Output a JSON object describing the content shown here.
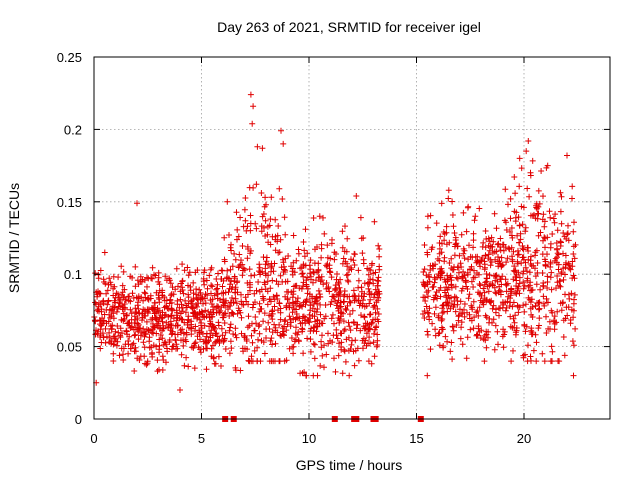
{
  "chart_data": {
    "type": "scatter",
    "title": "Day 263 of 2021, SRMTID for receiver igel",
    "xlabel": "GPS time / hours",
    "ylabel": "SRMTID / TECUs",
    "xlim": [
      0,
      24
    ],
    "ylim": [
      0,
      0.25
    ],
    "xticks": [
      0,
      5,
      10,
      15,
      20
    ],
    "yticks": [
      0,
      0.05,
      0.1,
      0.15,
      0.2,
      0.25
    ],
    "xtick_labels": [
      "0",
      "5",
      "10",
      "15",
      "20"
    ],
    "ytick_labels": [
      "0",
      "0.05",
      "0.1",
      "0.15",
      "0.2",
      "0.25"
    ],
    "grid": true,
    "marker": "+",
    "color": "#e00000",
    "zero_markers_x": [
      6.1,
      6.5,
      11.2,
      12.1,
      12.2,
      13.0,
      13.1,
      15.2
    ],
    "segments": [
      {
        "x_start": 0.0,
        "x_end": 6.0,
        "y_min": 0.03,
        "y_max": 0.11,
        "y_center": 0.07
      },
      {
        "x_start": 6.0,
        "x_end": 7.0,
        "y_min": 0.03,
        "y_max": 0.15,
        "y_center": 0.08
      },
      {
        "x_start": 7.0,
        "x_end": 8.0,
        "y_min": 0.04,
        "y_max": 0.22,
        "y_center": 0.09
      },
      {
        "x_start": 8.0,
        "x_end": 9.0,
        "y_min": 0.04,
        "y_max": 0.2,
        "y_center": 0.09
      },
      {
        "x_start": 9.0,
        "x_end": 11.0,
        "y_min": 0.03,
        "y_max": 0.15,
        "y_center": 0.08
      },
      {
        "x_start": 11.0,
        "x_end": 13.3,
        "y_min": 0.03,
        "y_max": 0.15,
        "y_center": 0.08
      },
      {
        "x_start": 15.3,
        "x_end": 19.0,
        "y_min": 0.04,
        "y_max": 0.16,
        "y_center": 0.09
      },
      {
        "x_start": 19.0,
        "x_end": 22.4,
        "y_min": 0.04,
        "y_max": 0.19,
        "y_center": 0.095
      }
    ],
    "sample_points": [
      [
        0.1,
        0.025
      ],
      [
        0.5,
        0.115
      ],
      [
        2.0,
        0.149
      ],
      [
        4.0,
        0.02
      ],
      [
        6.2,
        0.15
      ],
      [
        7.3,
        0.224
      ],
      [
        7.4,
        0.216
      ],
      [
        7.6,
        0.188
      ],
      [
        8.7,
        0.199
      ],
      [
        8.8,
        0.19
      ],
      [
        10.5,
        0.14
      ],
      [
        12.2,
        0.154
      ],
      [
        15.5,
        0.03
      ],
      [
        16.5,
        0.158
      ],
      [
        19.8,
        0.18
      ],
      [
        20.1,
        0.185
      ],
      [
        20.2,
        0.192
      ],
      [
        20.3,
        0.17
      ],
      [
        21.1,
        0.175
      ],
      [
        22.0,
        0.182
      ],
      [
        22.3,
        0.03
      ]
    ]
  }
}
